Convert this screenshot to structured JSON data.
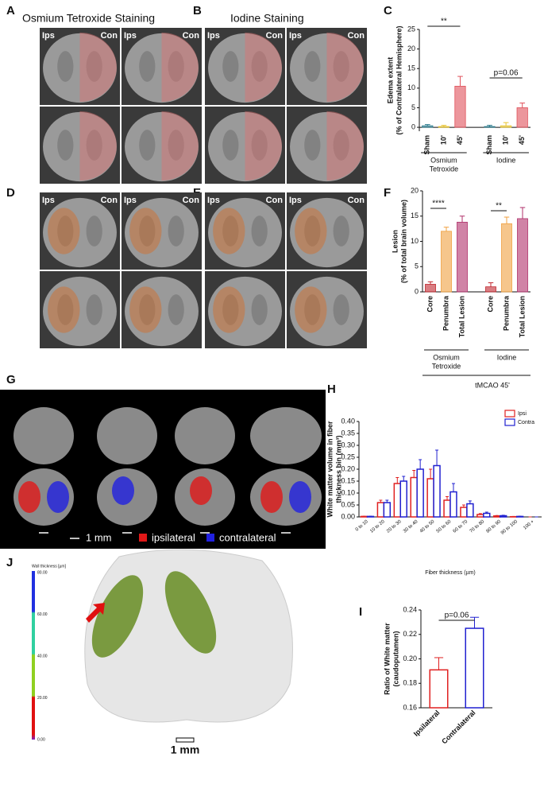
{
  "panel_letters": [
    "A",
    "B",
    "C",
    "D",
    "E",
    "F",
    "G",
    "H",
    "I",
    "J"
  ],
  "image_panels": {
    "osmium_title": "Osmium Tetroxide Staining",
    "iodine_title": "Iodine Staining",
    "ips": "Ips",
    "con": "Con"
  },
  "panel_g": {
    "scale_label": "1 mm",
    "legend": [
      {
        "name": "ipsilateral",
        "color": "#e01818"
      },
      {
        "name": "contralateral",
        "color": "#2020e0"
      }
    ]
  },
  "panel_j": {
    "colorbar_title": "Wall thickness [µm]",
    "colorbar_labels": [
      "80.00",
      "60.00",
      "40.00",
      "20.00",
      "0.00"
    ],
    "scale_label": "1 mm"
  },
  "chart_data": [
    {
      "type": "bar",
      "bar_style": "filled",
      "y_label": [
        "Edema extent",
        "(% of Contralateral Hemisphere)"
      ],
      "categories": [
        "Sham",
        "10'",
        "45'",
        "Sham",
        "10'",
        "45'"
      ],
      "values": [
        0.4,
        0.2,
        10.5,
        0.2,
        0.4,
        5
      ],
      "errors": [
        0.3,
        0.3,
        2.5,
        0.3,
        0.8,
        1.2
      ],
      "colors": [
        "#2a7a8c",
        "#e8c430",
        "#e0505a",
        "#2a7a8c",
        "#e8c430",
        "#e0505a"
      ],
      "groups": [
        [
          "Osmium",
          "Tetroxide"
        ],
        [
          "Iodine"
        ]
      ],
      "annotations": [
        "**",
        "p=0.06"
      ],
      "ylim": [
        -1,
        25
      ],
      "yticks": [
        0,
        5,
        10,
        15,
        20,
        25
      ]
    },
    {
      "type": "bar",
      "bar_style": "filled",
      "y_label": [
        "Lesion",
        "(% of total brain volume)"
      ],
      "categories": [
        "Core",
        "Penumbra",
        "Total Lesion",
        "Core",
        "Penumbra",
        "Total Lesion"
      ],
      "values": [
        1.5,
        12,
        13.8,
        1,
        13.5,
        14.5
      ],
      "errors": [
        0.5,
        0.8,
        1.2,
        0.8,
        1.3,
        2.2
      ],
      "colors": [
        "#c0262e",
        "#f0a040",
        "#b0306a",
        "#c0262e",
        "#f0a040",
        "#b0306a"
      ],
      "groups": [
        [
          "Osmium",
          "Tetroxide"
        ],
        [
          "Iodine"
        ]
      ],
      "super_group": "tMCAO 45'",
      "annotations": [
        "****",
        "**"
      ],
      "ylim": [
        0,
        20
      ],
      "yticks": [
        0,
        5,
        10,
        15,
        20
      ]
    },
    {
      "type": "bar",
      "bar_style": "outline",
      "y_label": [
        "White matter volume in fiber",
        "thickness bin (mm³)"
      ],
      "x_label": "Fiber thickness (µm)",
      "categories": [
        "0 to 10",
        "10 to 20",
        "20 to 30",
        "30 to 40",
        "40 to 50",
        "50 to 60",
        "60 to 70",
        "70 to 80",
        "80 to 90",
        "90 to 100",
        "100 +"
      ],
      "series": [
        {
          "name": "Ipsi",
          "color": "#e02020",
          "values": [
            0.002,
            0.06,
            0.14,
            0.165,
            0.16,
            0.07,
            0.04,
            0.01,
            0.004,
            0.001,
            0
          ],
          "errors": [
            0.001,
            0.01,
            0.025,
            0.03,
            0.04,
            0.015,
            0.01,
            0.004,
            0.002,
            0.001,
            0
          ]
        },
        {
          "name": "Contra",
          "color": "#2020d0",
          "values": [
            0.002,
            0.06,
            0.15,
            0.2,
            0.215,
            0.105,
            0.055,
            0.015,
            0.005,
            0.002,
            0
          ],
          "errors": [
            0.001,
            0.01,
            0.02,
            0.04,
            0.065,
            0.035,
            0.012,
            0.005,
            0.002,
            0.001,
            0
          ]
        }
      ],
      "legend": "top-right",
      "ylim": [
        0,
        0.4
      ],
      "yticks": [
        {
          "value": 0,
          "label": "0.00"
        },
        0.05,
        {
          "value": 0.1,
          "label": "0.10"
        },
        0.15,
        {
          "value": 0.2,
          "label": "0.20"
        },
        0.25,
        {
          "value": 0.3,
          "label": "0.30"
        },
        0.35,
        {
          "value": 0.4,
          "label": "0.40"
        }
      ]
    },
    {
      "type": "bar",
      "bar_style": "outline",
      "y_label": [
        "Ratio of White matter",
        "(caudoputamen)"
      ],
      "categories": [
        "Ipsilateral",
        "Contralateral"
      ],
      "values": [
        0.191,
        0.225
      ],
      "errors": [
        0.01,
        0.009
      ],
      "colors": [
        "#e02020",
        "#2020d0"
      ],
      "annotations": [
        "p=0.06"
      ],
      "ylim": [
        0.16,
        0.24
      ],
      "yticks": [
        0.16,
        0.18,
        {
          "value": 0.2,
          "label": "0.20"
        },
        0.22,
        0.24
      ]
    }
  ]
}
